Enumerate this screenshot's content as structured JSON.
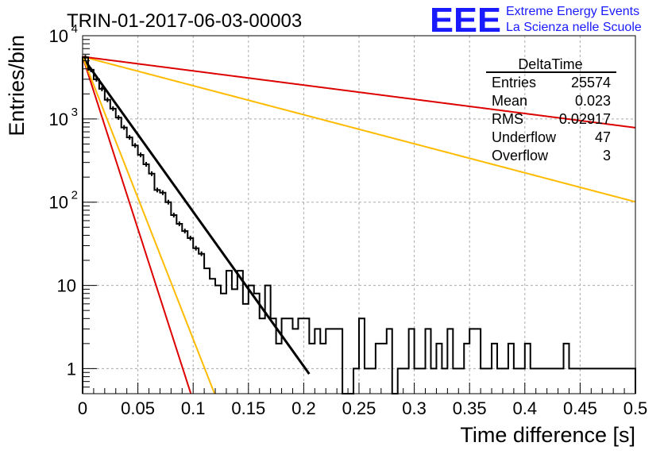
{
  "header": {
    "run_title": "TRIN-01-2017-06-03-00003",
    "logo_text": "EEE",
    "logo_line1": "Extreme Energy Events",
    "logo_line2": "La Scienza nelle Scuole"
  },
  "stats": {
    "title": "DeltaTime",
    "rows": [
      {
        "label": "Entries",
        "value": "25574"
      },
      {
        "label": "Mean",
        "value": "0.023"
      },
      {
        "label": "RMS",
        "value": "0.02917"
      },
      {
        "label": "Underflow",
        "value": "47"
      },
      {
        "label": "Overflow",
        "value": "3"
      }
    ]
  },
  "colors": {
    "histogram": "#000000",
    "fit": "#000000",
    "red_lines": "#dd0000",
    "orange_lines": "#ffbb00",
    "grid": "#aaaaaa",
    "logo": "#1a1aff"
  },
  "chart_data": {
    "type": "histogram",
    "xlabel": "Time difference [s]",
    "ylabel": "Entries/bin",
    "xlim": [
      0,
      0.5
    ],
    "ylim": [
      0.5,
      10000
    ],
    "yscale": "log",
    "grid": true,
    "x_ticks": [
      {
        "value": 0,
        "label": "0"
      },
      {
        "value": 0.05,
        "label": "0.05"
      },
      {
        "value": 0.1,
        "label": "0.1"
      },
      {
        "value": 0.15,
        "label": "0.15"
      },
      {
        "value": 0.2,
        "label": "0.2"
      },
      {
        "value": 0.25,
        "label": "0.25"
      },
      {
        "value": 0.3,
        "label": "0.3"
      },
      {
        "value": 0.35,
        "label": "0.35"
      },
      {
        "value": 0.4,
        "label": "0.4"
      },
      {
        "value": 0.45,
        "label": "0.45"
      },
      {
        "value": 0.5,
        "label": "0.5"
      }
    ],
    "y_ticks": [
      {
        "value": 1,
        "label": "1"
      },
      {
        "value": 10,
        "label": "10"
      },
      {
        "value": 100,
        "label": "10",
        "exp": "2"
      },
      {
        "value": 1000,
        "label": "10",
        "exp": "3"
      },
      {
        "value": 10000,
        "label": "10",
        "exp": "4"
      }
    ],
    "bin_width": 0.005,
    "bin_contents": [
      5500,
      3900,
      3000,
      2300,
      1700,
      1330,
      1040,
      790,
      600,
      480,
      370,
      285,
      220,
      140,
      130,
      100,
      70,
      55,
      45,
      37,
      28,
      24,
      16,
      12,
      10,
      8,
      15,
      9,
      15,
      6,
      10,
      8,
      4,
      10,
      4,
      2,
      4,
      4,
      3,
      4,
      4,
      2,
      3,
      2,
      3,
      3,
      3,
      0,
      0,
      1,
      4,
      1,
      1,
      2,
      2,
      3,
      0,
      1,
      1,
      3,
      1,
      1,
      3,
      1,
      2,
      1,
      3,
      1,
      1,
      2,
      3,
      3,
      1,
      1,
      2,
      1,
      1,
      2,
      1,
      1,
      2,
      1,
      1,
      1,
      1,
      1,
      1,
      2,
      1,
      1,
      1,
      1,
      1,
      1,
      1,
      1,
      1,
      1,
      1,
      1
    ],
    "series": [
      {
        "kind": "exp_fit",
        "color": "black",
        "a": 5500,
        "tau": 0.0234,
        "x_range": [
          0,
          0.205
        ]
      },
      {
        "kind": "exp_guide",
        "color": "red",
        "a": 5600,
        "tau": 0.0105,
        "x_range": [
          0,
          0.5
        ]
      },
      {
        "kind": "exp_guide",
        "color": "orange",
        "a": 5600,
        "tau": 0.0128,
        "x_range": [
          0,
          0.5
        ]
      },
      {
        "kind": "exp_guide",
        "color": "orange",
        "a": 5600,
        "tau": 0.1245,
        "x_range": [
          0,
          0.5
        ]
      },
      {
        "kind": "exp_guide",
        "color": "red",
        "a": 5600,
        "tau": 0.2545,
        "x_range": [
          0,
          0.5
        ]
      }
    ]
  }
}
